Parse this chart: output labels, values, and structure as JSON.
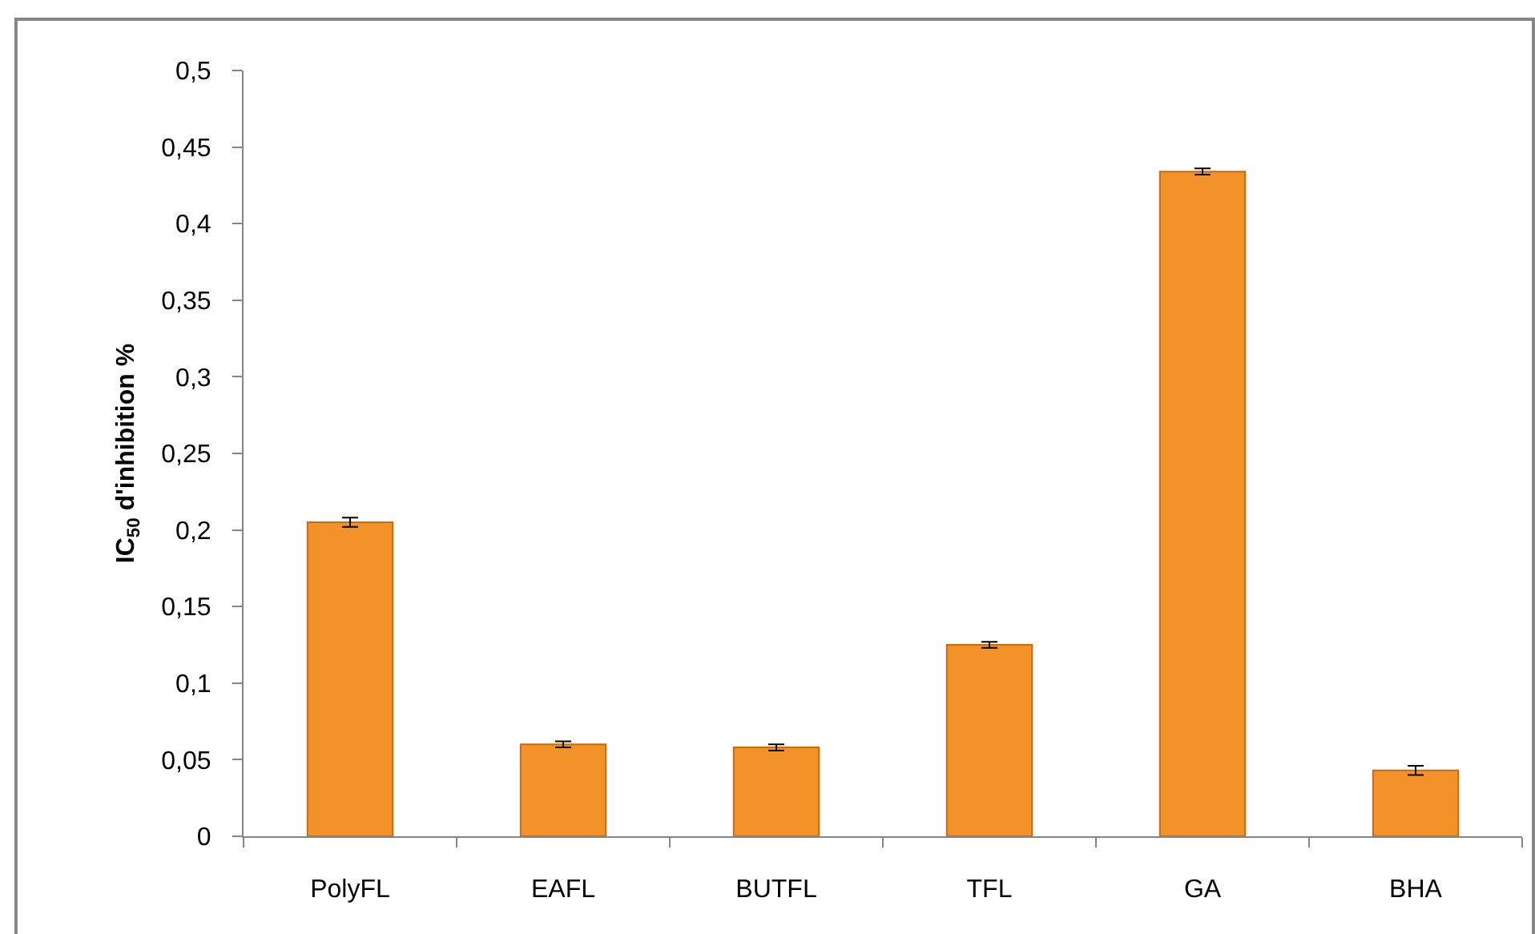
{
  "chart_data": {
    "type": "bar",
    "ylabel": "IC$_{50}$ d'inhibition %",
    "categories": [
      "PolyFL",
      "EAFL",
      "BUTFL",
      "TFL",
      "GA",
      "BHA"
    ],
    "values": [
      0.205,
      0.06,
      0.058,
      0.125,
      0.434,
      0.043
    ],
    "errors": [
      0.003,
      0.002,
      0.002,
      0.002,
      0.002,
      0.003
    ],
    "color": "#f39229",
    "ylim": [
      0,
      0.5
    ],
    "yticks": [
      0,
      {
        "value": 0.05,
        "label": "0,05"
      },
      {
        "value": 0.1,
        "label": "0,1"
      },
      {
        "value": 0.15,
        "label": "0,15"
      },
      {
        "value": 0.2,
        "label": "0,2"
      },
      {
        "value": 0.25,
        "label": "0,25"
      },
      {
        "value": 0.3,
        "label": "0,3"
      },
      {
        "value": 0.35,
        "label": "0,35"
      },
      {
        "value": 0.4,
        "label": "0,4"
      },
      {
        "value": 0.45,
        "label": "0,45"
      },
      {
        "value": 0.5,
        "label": "0,5"
      }
    ]
  }
}
